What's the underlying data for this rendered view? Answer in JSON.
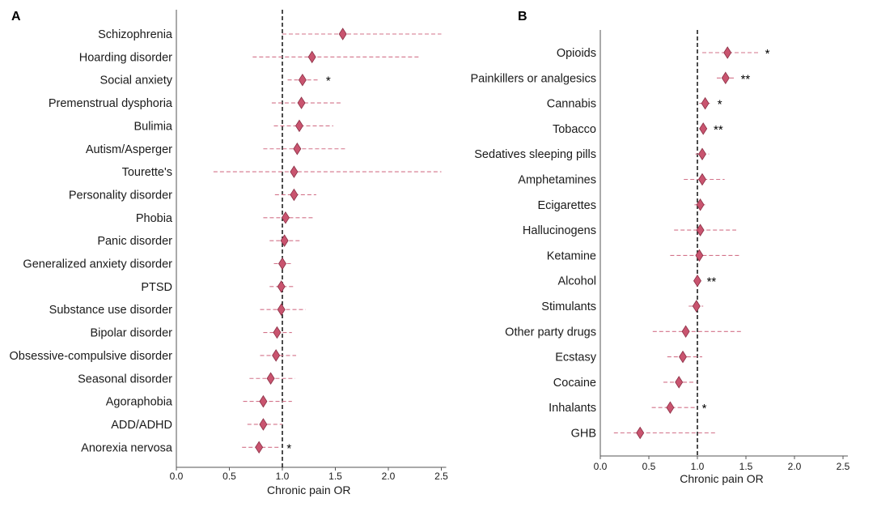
{
  "colors": {
    "marker": "#c9546f",
    "marker_stroke": "#8a2f45",
    "ci": "#d3738a",
    "refline": "#000000",
    "axis": "#555555"
  },
  "chart_data": [
    {
      "type": "forest",
      "panel_label": "A",
      "xlabel": "Chronic pain OR",
      "xlim": [
        0.0,
        2.5
      ],
      "xticks": [
        0.0,
        0.5,
        1.0,
        1.5,
        2.0,
        2.5
      ],
      "xtick_labels": [
        "0.0",
        "0.5",
        "1.0",
        "1.5",
        "2.0",
        "2.5"
      ],
      "reference_line": 1.0,
      "items": [
        {
          "label": "Schizophrenia",
          "or": 1.57,
          "ci_low": 1.0,
          "ci_high": 2.5,
          "sig": ""
        },
        {
          "label": "Hoarding disorder",
          "or": 1.28,
          "ci_low": 0.72,
          "ci_high": 2.3,
          "sig": ""
        },
        {
          "label": "Social anxiety",
          "or": 1.19,
          "ci_low": 1.05,
          "ci_high": 1.35,
          "sig": "*"
        },
        {
          "label": "Premenstrual dysphoria",
          "or": 1.18,
          "ci_low": 0.9,
          "ci_high": 1.55,
          "sig": ""
        },
        {
          "label": "Bulimia",
          "or": 1.16,
          "ci_low": 0.92,
          "ci_high": 1.48,
          "sig": ""
        },
        {
          "label": "Autism/Asperger",
          "or": 1.14,
          "ci_low": 0.82,
          "ci_high": 1.6,
          "sig": ""
        },
        {
          "label": "Tourette's",
          "or": 1.11,
          "ci_low": 0.35,
          "ci_high": 2.5,
          "sig": ""
        },
        {
          "label": "Personality disorder",
          "or": 1.11,
          "ci_low": 0.93,
          "ci_high": 1.32,
          "sig": ""
        },
        {
          "label": "Phobia",
          "or": 1.03,
          "ci_low": 0.82,
          "ci_high": 1.29,
          "sig": ""
        },
        {
          "label": "Panic disorder",
          "or": 1.02,
          "ci_low": 0.88,
          "ci_high": 1.18,
          "sig": ""
        },
        {
          "label": "Generalized anxiety disorder",
          "or": 1.0,
          "ci_low": 0.92,
          "ci_high": 1.09,
          "sig": ""
        },
        {
          "label": "PTSD",
          "or": 0.99,
          "ci_low": 0.88,
          "ci_high": 1.11,
          "sig": ""
        },
        {
          "label": "Substance use disorder",
          "or": 0.99,
          "ci_low": 0.79,
          "ci_high": 1.22,
          "sig": ""
        },
        {
          "label": "Bipolar disorder",
          "or": 0.95,
          "ci_low": 0.82,
          "ci_high": 1.09,
          "sig": ""
        },
        {
          "label": "Obsessive-compulsive disorder",
          "or": 0.94,
          "ci_low": 0.79,
          "ci_high": 1.13,
          "sig": ""
        },
        {
          "label": "Seasonal disorder",
          "or": 0.89,
          "ci_low": 0.69,
          "ci_high": 1.12,
          "sig": ""
        },
        {
          "label": "Agoraphobia",
          "or": 0.82,
          "ci_low": 0.63,
          "ci_high": 1.09,
          "sig": ""
        },
        {
          "label": "ADD/ADHD",
          "or": 0.82,
          "ci_low": 0.67,
          "ci_high": 1.0,
          "sig": ""
        },
        {
          "label": "Anorexia nervosa",
          "or": 0.78,
          "ci_low": 0.62,
          "ci_high": 0.98,
          "sig": "*"
        }
      ]
    },
    {
      "type": "forest",
      "panel_label": "B",
      "xlabel": "Chronic pain OR",
      "xlim": [
        0.0,
        2.5
      ],
      "xticks": [
        0.0,
        0.5,
        1.0,
        1.5,
        2.0,
        2.5
      ],
      "xtick_labels": [
        "0.0",
        "0.5",
        "1.0",
        "1.5",
        "2.0",
        "2.5"
      ],
      "reference_line": 1.0,
      "items": [
        {
          "label": "Opioids",
          "or": 1.31,
          "ci_low": 1.05,
          "ci_high": 1.63,
          "sig": "*"
        },
        {
          "label": "Painkillers or analgesics",
          "or": 1.29,
          "ci_low": 1.2,
          "ci_high": 1.38,
          "sig": "**"
        },
        {
          "label": "Cannabis",
          "or": 1.08,
          "ci_low": 1.02,
          "ci_high": 1.14,
          "sig": "*"
        },
        {
          "label": "Tobacco",
          "or": 1.06,
          "ci_low": 1.03,
          "ci_high": 1.1,
          "sig": "**"
        },
        {
          "label": "Sedatives sleeping pills",
          "or": 1.05,
          "ci_low": 0.98,
          "ci_high": 1.12,
          "sig": ""
        },
        {
          "label": "Amphetamines",
          "or": 1.05,
          "ci_low": 0.86,
          "ci_high": 1.28,
          "sig": ""
        },
        {
          "label": "Ecigarettes",
          "or": 1.03,
          "ci_low": 0.97,
          "ci_high": 1.1,
          "sig": ""
        },
        {
          "label": "Hallucinogens",
          "or": 1.03,
          "ci_low": 0.76,
          "ci_high": 1.4,
          "sig": ""
        },
        {
          "label": "Ketamine",
          "or": 1.02,
          "ci_low": 0.72,
          "ci_high": 1.45,
          "sig": ""
        },
        {
          "label": "Alcohol",
          "or": 1.0,
          "ci_low": 0.97,
          "ci_high": 1.03,
          "sig": "**"
        },
        {
          "label": "Stimulants",
          "or": 0.99,
          "ci_low": 0.91,
          "ci_high": 1.06,
          "sig": ""
        },
        {
          "label": "Other party drugs",
          "or": 0.88,
          "ci_low": 0.54,
          "ci_high": 1.45,
          "sig": ""
        },
        {
          "label": "Ecstasy",
          "or": 0.85,
          "ci_low": 0.69,
          "ci_high": 1.05,
          "sig": ""
        },
        {
          "label": "Cocaine",
          "or": 0.81,
          "ci_low": 0.65,
          "ci_high": 0.99,
          "sig": ""
        },
        {
          "label": "Inhalants",
          "or": 0.72,
          "ci_low": 0.53,
          "ci_high": 0.98,
          "sig": "*"
        },
        {
          "label": "GHB",
          "or": 0.41,
          "ci_low": 0.14,
          "ci_high": 1.2,
          "sig": ""
        }
      ]
    }
  ]
}
